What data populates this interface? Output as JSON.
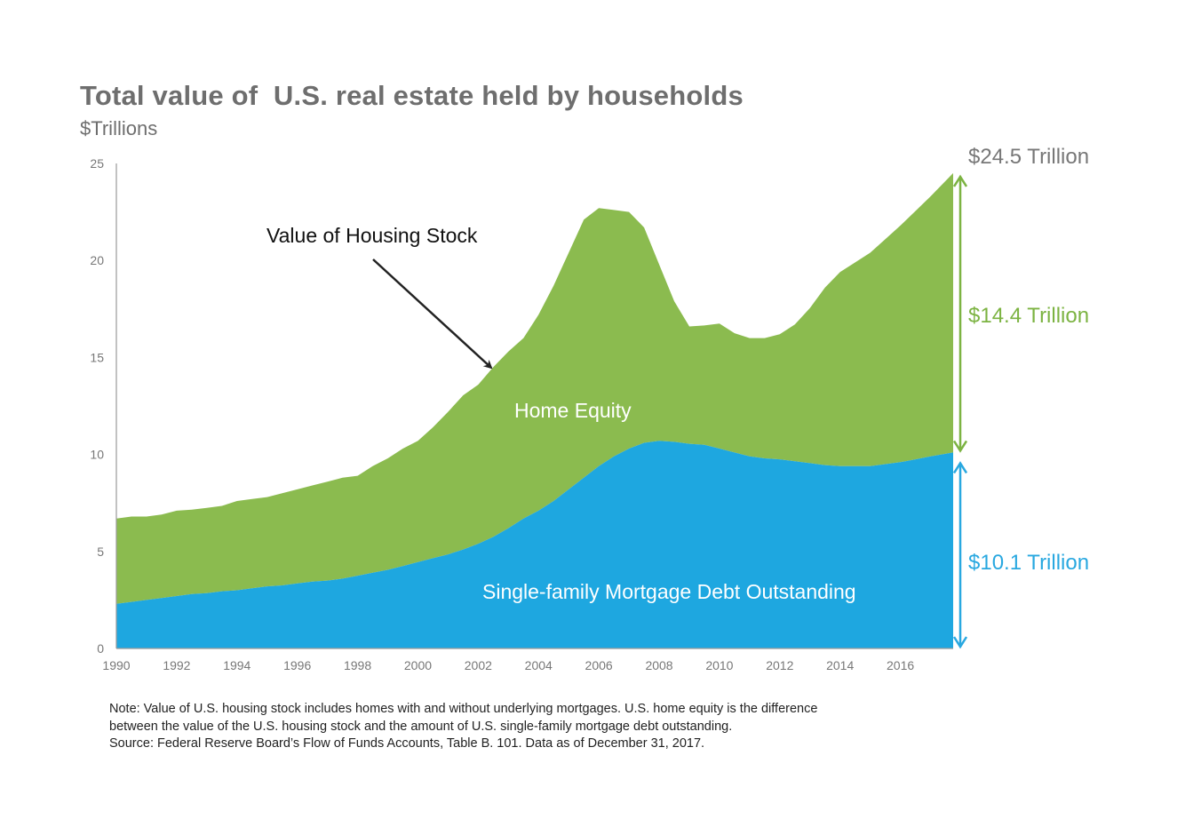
{
  "title": "Total value of  U.S. real estate held by households",
  "subtitle": "$Trillions",
  "annotations": {
    "housing_stock": "Value of Housing Stock",
    "home_equity": "Home Equity",
    "mortgage_debt": "Single-family Mortgage Debt Outstanding",
    "total_value": "$24.5 Trillion",
    "equity_value": "$14.4 Trillion",
    "debt_value": "$10.1 Trillion"
  },
  "colors": {
    "equity": "#8bbb4f",
    "debt": "#1ea7e0",
    "total_label": "#777777",
    "equity_label": "#7cb342",
    "debt_label": "#29a8e0",
    "arrow_equity": "#7cb342",
    "arrow_debt": "#29a8e0"
  },
  "notes": [
    "Note:  Value of U.S. housing stock includes homes with and without underlying mortgages.  U.S. home equity is the difference",
    "between the value of the U.S. housing stock and the amount of U.S. single-family mortgage debt outstanding.",
    "Source: Federal Reserve Board’s Flow of Funds Accounts, Table B. 101. Data as of December 31, 2017."
  ],
  "chart_data": {
    "type": "area",
    "title": "Total value of  U.S. real estate held by households",
    "ylabel": "$Trillions",
    "xlim": [
      1990,
      2017.75
    ],
    "ylim": [
      0,
      25
    ],
    "x_ticks": [
      "1990",
      "1992",
      "1994",
      "1996",
      "1998",
      "2000",
      "2002",
      "2004",
      "2006",
      "2008",
      "2010",
      "2012",
      "2014",
      "2016"
    ],
    "y_ticks": [
      "0",
      "5",
      "10",
      "15",
      "20",
      "25"
    ],
    "grid": false,
    "stacked": true,
    "x": [
      1990,
      1990.5,
      1991,
      1991.5,
      1992,
      1992.5,
      1993,
      1993.5,
      1994,
      1994.5,
      1995,
      1995.5,
      1996,
      1996.5,
      1997,
      1997.5,
      1998,
      1998.5,
      1999,
      1999.5,
      2000,
      2000.5,
      2001,
      2001.5,
      2002,
      2002.5,
      2003,
      2003.5,
      2004,
      2004.5,
      2005,
      2005.5,
      2006,
      2006.5,
      2007,
      2007.5,
      2008,
      2008.5,
      2009,
      2009.5,
      2010,
      2010.5,
      2011,
      2011.5,
      2012,
      2012.5,
      2013,
      2013.5,
      2014,
      2014.5,
      2015,
      2015.5,
      2016,
      2016.5,
      2017,
      2017.75
    ],
    "series": [
      {
        "name": "Single-family Mortgage Debt Outstanding",
        "values": [
          2.3,
          2.4,
          2.5,
          2.6,
          2.7,
          2.8,
          2.85,
          2.95,
          3.0,
          3.1,
          3.2,
          3.25,
          3.35,
          3.45,
          3.5,
          3.6,
          3.75,
          3.9,
          4.05,
          4.25,
          4.45,
          4.65,
          4.85,
          5.1,
          5.4,
          5.75,
          6.2,
          6.7,
          7.1,
          7.6,
          8.2,
          8.8,
          9.4,
          9.9,
          10.3,
          10.6,
          10.7,
          10.65,
          10.55,
          10.5,
          10.3,
          10.1,
          9.9,
          9.8,
          9.75,
          9.65,
          9.55,
          9.45,
          9.4,
          9.4,
          9.4,
          9.5,
          9.6,
          9.75,
          9.9,
          10.1
        ]
      },
      {
        "name": "Home Equity",
        "values": [
          4.4,
          4.4,
          4.3,
          4.3,
          4.4,
          4.35,
          4.4,
          4.4,
          4.6,
          4.6,
          4.6,
          4.75,
          4.85,
          4.95,
          5.1,
          5.2,
          5.15,
          5.5,
          5.75,
          6.05,
          6.25,
          6.75,
          7.35,
          7.95,
          8.2,
          8.75,
          9.1,
          9.3,
          10.1,
          11.1,
          12.2,
          13.3,
          13.3,
          12.7,
          12.2,
          11.1,
          9.1,
          7.25,
          6.05,
          6.15,
          6.45,
          6.15,
          6.1,
          6.2,
          6.45,
          7.05,
          8.0,
          9.15,
          10.0,
          10.5,
          11.0,
          11.6,
          12.2,
          12.8,
          13.4,
          14.4
        ]
      }
    ],
    "totals": [
      6.7,
      6.8,
      6.8,
      6.9,
      7.1,
      7.15,
      7.25,
      7.35,
      7.6,
      7.7,
      7.8,
      8.0,
      8.2,
      8.4,
      8.6,
      8.8,
      8.9,
      9.4,
      9.8,
      10.3,
      10.7,
      11.4,
      12.2,
      13.05,
      13.6,
      14.5,
      15.3,
      16.0,
      17.2,
      18.7,
      20.4,
      22.1,
      22.7,
      22.6,
      22.5,
      21.7,
      19.8,
      17.9,
      16.6,
      16.65,
      16.75,
      16.25,
      16.0,
      16.0,
      16.2,
      16.7,
      17.55,
      18.6,
      19.4,
      19.9,
      20.4,
      21.1,
      21.8,
      22.55,
      23.3,
      24.5
    ]
  }
}
